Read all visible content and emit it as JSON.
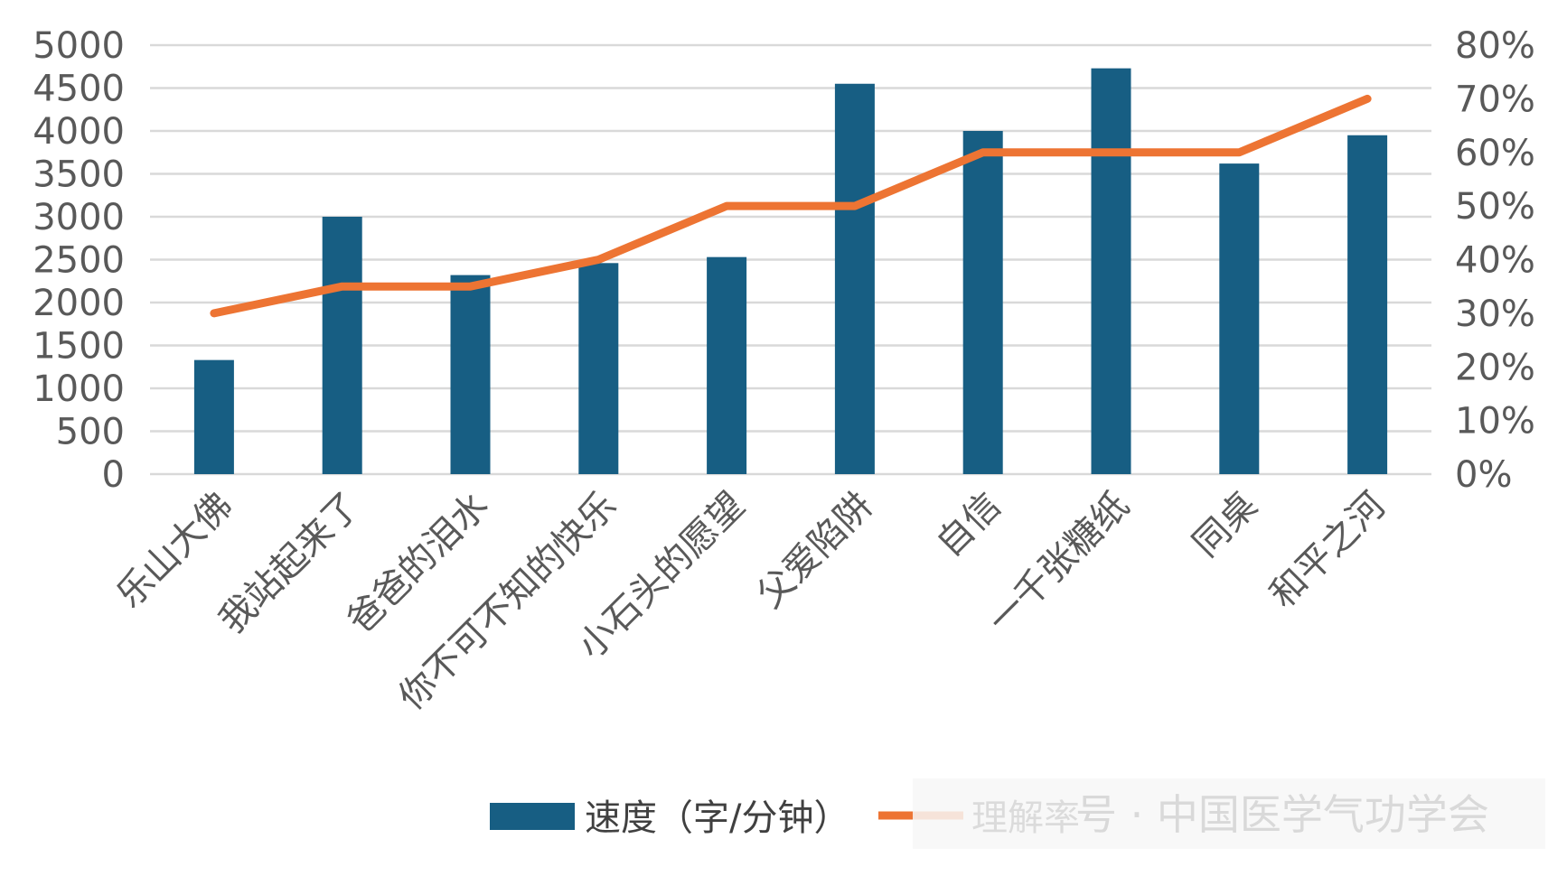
{
  "chart_data": {
    "type": "bar",
    "title": "",
    "categories": [
      "乐山大佛",
      "我站起来了",
      "爸爸的泪水",
      "你不可不知的快乐",
      "小石头的愿望",
      "父爱陷阱",
      "自信",
      "一千张糖纸",
      "同桌",
      "和平之河"
    ],
    "series": [
      {
        "name": "速度（字/分钟）",
        "type": "bar",
        "axis": "left",
        "color": "#175e83",
        "values": [
          1330,
          3000,
          2320,
          2460,
          2530,
          4550,
          4000,
          4730,
          3620,
          3950
        ]
      },
      {
        "name": "理解率",
        "type": "line",
        "axis": "right",
        "color": "#ed7433",
        "values": [
          0.3,
          0.35,
          0.35,
          0.4,
          0.5,
          0.5,
          0.6,
          0.6,
          0.6,
          0.7
        ]
      }
    ],
    "y_left": {
      "range": [
        0,
        5000
      ],
      "ticks": [
        "0",
        "500",
        "1000",
        "1500",
        "2000",
        "2500",
        "3000",
        "3500",
        "4000",
        "4500",
        "5000"
      ]
    },
    "y_right": {
      "range": [
        0,
        0.8
      ],
      "ticks": [
        "0%",
        "10%",
        "20%",
        "30%",
        "40%",
        "50%",
        "60%",
        "70%",
        "80%"
      ]
    },
    "grid": true,
    "legend_position": "bottom",
    "gridline_color": "#d9d9d9"
  },
  "watermark": "号 · 中国医学气功学会"
}
